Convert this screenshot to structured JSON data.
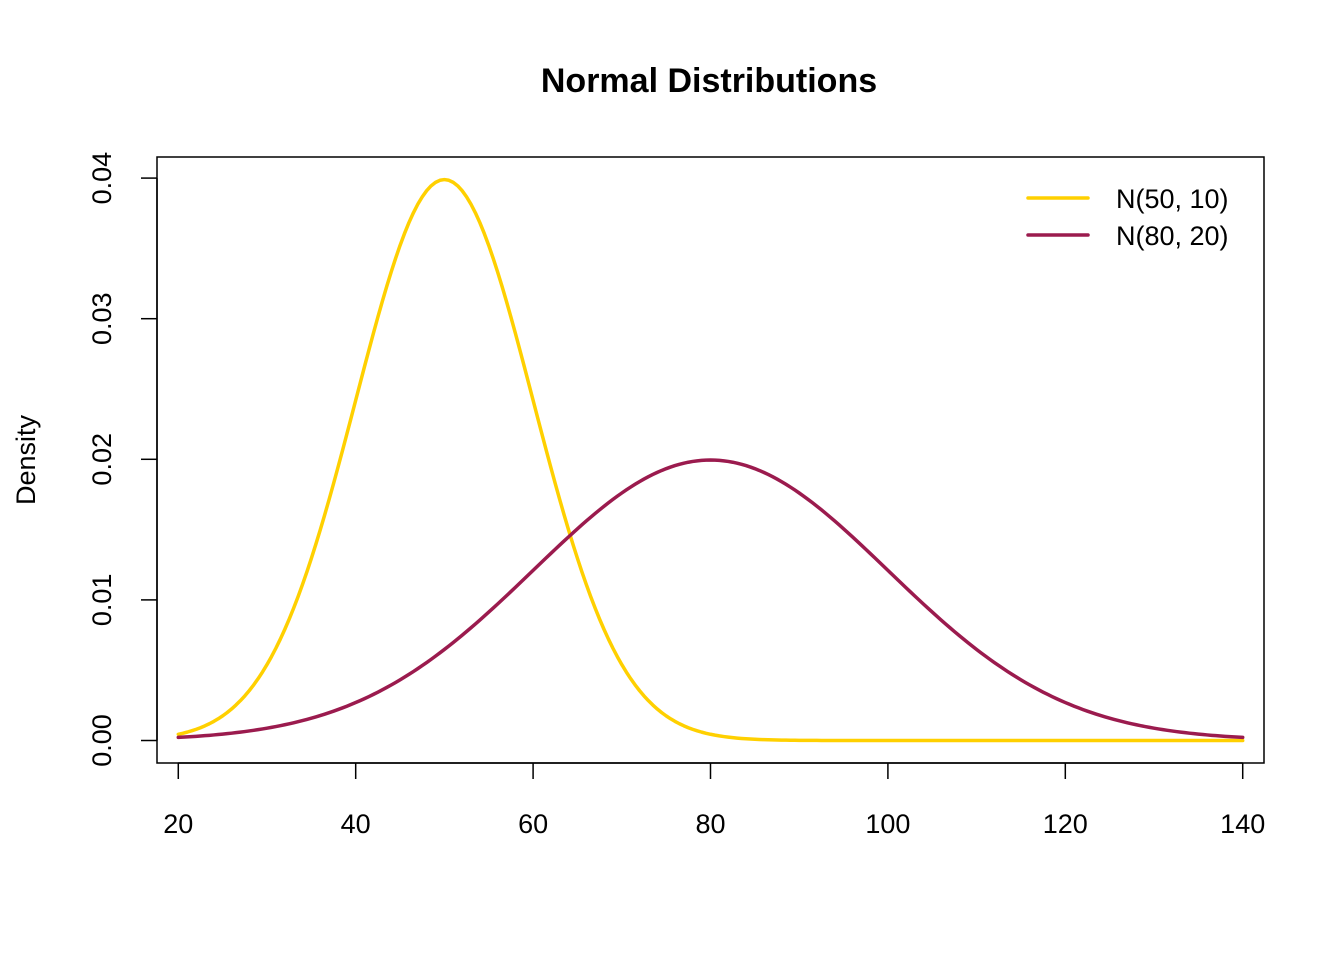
{
  "chart_data": {
    "type": "line",
    "title": "Normal Distributions",
    "xlabel": "",
    "ylabel": "Density",
    "xlim": [
      17.6,
      142.4
    ],
    "ylim": [
      -0.0016,
      0.0415
    ],
    "x_ticks": [
      20,
      40,
      60,
      80,
      100,
      120,
      140
    ],
    "x_tick_labels": [
      "20",
      "40",
      "60",
      "80",
      "100",
      "120",
      "140"
    ],
    "y_ticks": [
      0.0,
      0.01,
      0.02,
      0.03,
      0.04
    ],
    "y_tick_labels": [
      "0.00",
      "0.01",
      "0.02",
      "0.03",
      "0.04"
    ],
    "grid": false,
    "legend_position": "top-right",
    "legend_frame": false,
    "x_range": [
      20,
      140
    ],
    "x_step": 0.5,
    "series": [
      {
        "name": "N(50, 10)",
        "distribution": "normal",
        "mean": 50,
        "sd": 10,
        "color": "#FFD000"
      },
      {
        "name": "N(80, 20)",
        "distribution": "normal",
        "mean": 80,
        "sd": 20,
        "color": "#9B1B4E"
      }
    ]
  }
}
